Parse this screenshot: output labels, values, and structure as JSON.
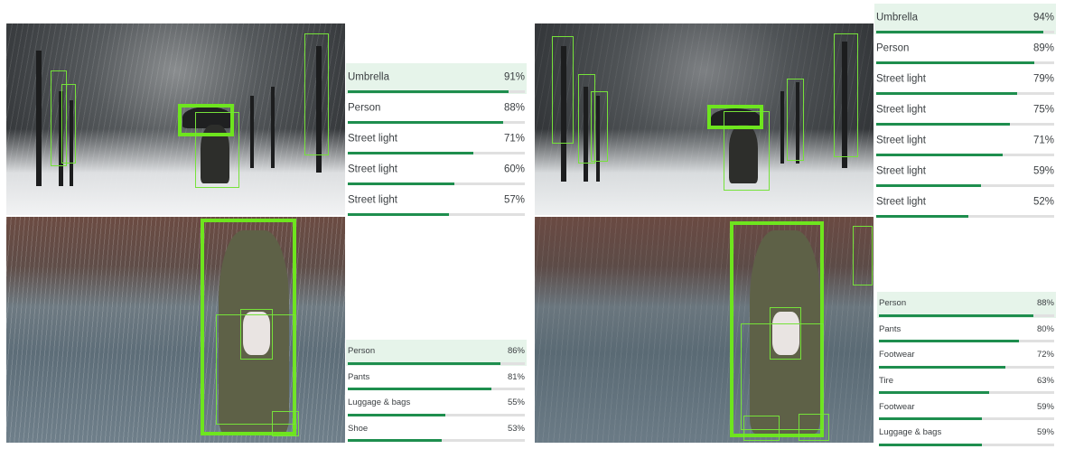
{
  "comparisons": [
    {
      "id": "street-left",
      "rows": [
        {
          "label": "Umbrella",
          "pct": "91%",
          "value": 0.91,
          "selected": true
        },
        {
          "label": "Person",
          "pct": "88%",
          "value": 0.88
        },
        {
          "label": "Street light",
          "pct": "71%",
          "value": 0.71
        },
        {
          "label": "Street light",
          "pct": "60%",
          "value": 0.6
        },
        {
          "label": "Street light",
          "pct": "57%",
          "value": 0.57
        }
      ]
    },
    {
      "id": "street-right",
      "rows": [
        {
          "label": "Umbrella",
          "pct": "94%",
          "value": 0.94,
          "selected": true
        },
        {
          "label": "Person",
          "pct": "89%",
          "value": 0.89
        },
        {
          "label": "Street light",
          "pct": "79%",
          "value": 0.79
        },
        {
          "label": "Street light",
          "pct": "75%",
          "value": 0.75
        },
        {
          "label": "Street light",
          "pct": "71%",
          "value": 0.71
        },
        {
          "label": "Street light",
          "pct": "59%",
          "value": 0.59
        },
        {
          "label": "Street light",
          "pct": "52%",
          "value": 0.52
        }
      ]
    },
    {
      "id": "walk-left",
      "rows": [
        {
          "label": "Person",
          "pct": "86%",
          "value": 0.86,
          "selected": true
        },
        {
          "label": "Pants",
          "pct": "81%",
          "value": 0.81
        },
        {
          "label": "Luggage & bags",
          "pct": "55%",
          "value": 0.55
        },
        {
          "label": "Shoe",
          "pct": "53%",
          "value": 0.53
        }
      ]
    },
    {
      "id": "walk-right",
      "rows": [
        {
          "label": "Person",
          "pct": "88%",
          "value": 0.88,
          "selected": true
        },
        {
          "label": "Pants",
          "pct": "80%",
          "value": 0.8
        },
        {
          "label": "Footwear",
          "pct": "72%",
          "value": 0.72
        },
        {
          "label": "Tire",
          "pct": "63%",
          "value": 0.63
        },
        {
          "label": "Footwear",
          "pct": "59%",
          "value": 0.59
        },
        {
          "label": "Luggage & bags",
          "pct": "59%",
          "value": 0.59
        }
      ]
    }
  ],
  "colors": {
    "box": "#76e23a",
    "bar_fill": "#1e8e4e",
    "bar_track": "#e0e0e0",
    "selected_row": "#e6f4ea"
  }
}
